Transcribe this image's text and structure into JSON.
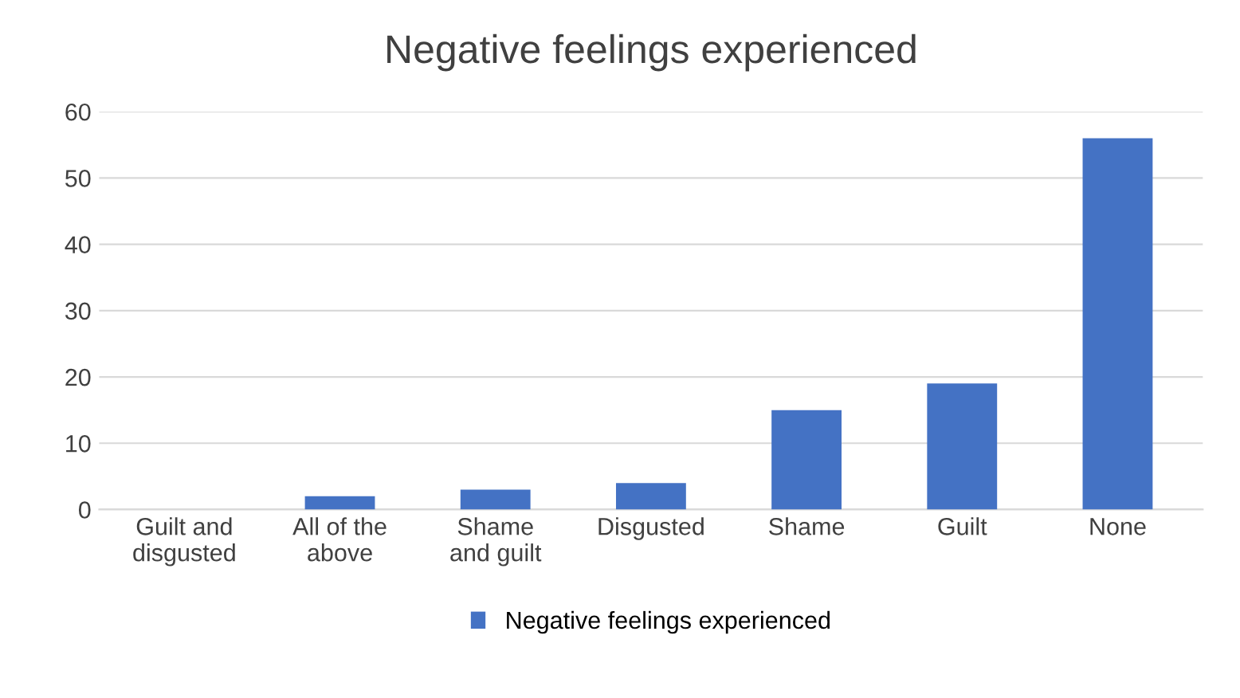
{
  "chart_data": {
    "type": "bar",
    "title": "Negative feelings experienced",
    "categories": [
      "Guilt and\ndisgusted",
      "All of the\nabove",
      "Shame\nand guilt",
      "Disgusted",
      "Shame",
      "Guilt",
      "None"
    ],
    "series": [
      {
        "name": "Negative feelings experienced",
        "color": "#4472c4",
        "values": [
          0,
          2,
          3,
          4,
          15,
          19,
          56
        ]
      }
    ],
    "ylim": [
      0,
      60
    ],
    "yticks": [
      0,
      10,
      20,
      30,
      40,
      50,
      60
    ],
    "grid": "y",
    "legend": "bottom"
  }
}
